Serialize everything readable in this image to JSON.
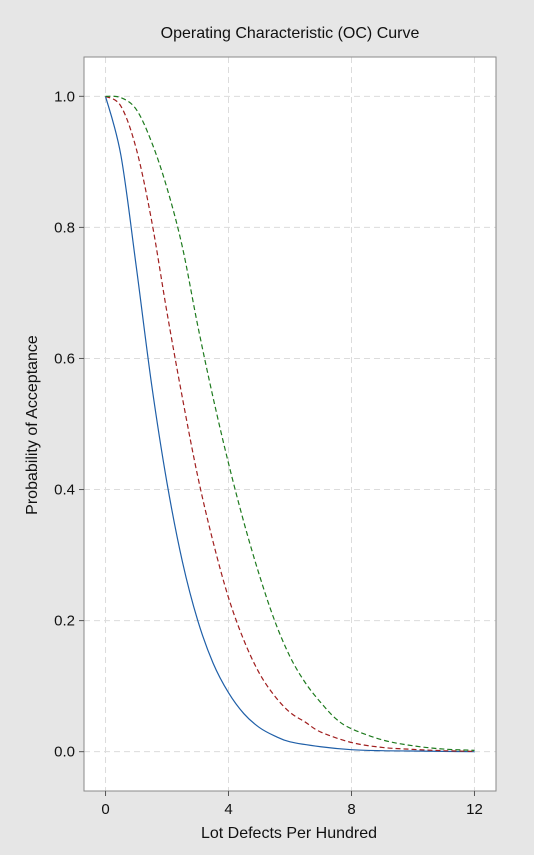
{
  "chart_data": {
    "type": "line",
    "title": "Operating Characteristic (OC) Curve",
    "xlabel": "Lot Defects Per Hundred",
    "ylabel": "Probability of Acceptance",
    "xlim": [
      -0.7,
      12.7
    ],
    "ylim": [
      -0.06,
      1.06
    ],
    "x_ticks": [
      0,
      4,
      8,
      12
    ],
    "x_tick_labels": [
      "0",
      "4",
      "8",
      "12"
    ],
    "y_ticks": [
      0.0,
      0.2,
      0.4,
      0.6,
      0.8,
      1.0
    ],
    "y_tick_labels": [
      "0.0",
      "0.2",
      "0.4",
      "0.6",
      "0.8",
      "1.0"
    ],
    "grid": true,
    "background": "#e6e6e6",
    "plot_background": "#ffffff",
    "series": [
      {
        "color": "#1f5fa8",
        "style": "solid",
        "x": [
          0,
          0.5,
          1,
          1.5,
          2,
          2.5,
          3,
          3.5,
          4,
          4.5,
          5,
          5.5,
          6,
          7,
          8,
          9,
          10,
          11,
          12
        ],
        "y": [
          1.0,
          0.91,
          0.74,
          0.56,
          0.41,
          0.29,
          0.2,
          0.135,
          0.09,
          0.058,
          0.037,
          0.024,
          0.015,
          0.0075,
          0.003,
          0.0015,
          0.001,
          0.0005,
          0.0
        ]
      },
      {
        "color": "#a01f1f",
        "style": "dashed",
        "x": [
          0,
          0.5,
          1,
          1.5,
          2,
          2.5,
          3,
          3.5,
          4,
          4.5,
          5,
          5.5,
          6,
          6.5,
          7,
          8,
          9,
          10,
          11,
          12
        ],
        "y": [
          1.0,
          0.985,
          0.92,
          0.81,
          0.67,
          0.54,
          0.42,
          0.32,
          0.235,
          0.17,
          0.12,
          0.085,
          0.06,
          0.045,
          0.03,
          0.014,
          0.0065,
          0.0035,
          0.0015,
          0.0005
        ]
      },
      {
        "color": "#1e7a1e",
        "style": "dashed",
        "x": [
          0,
          0.5,
          1,
          1.5,
          2,
          2.5,
          3,
          3.5,
          4,
          4.5,
          5,
          5.5,
          6,
          6.5,
          7,
          7.5,
          8,
          9,
          10,
          11,
          12
        ],
        "y": [
          1.0,
          0.998,
          0.98,
          0.93,
          0.86,
          0.77,
          0.65,
          0.54,
          0.44,
          0.35,
          0.27,
          0.2,
          0.145,
          0.105,
          0.075,
          0.05,
          0.035,
          0.018,
          0.009,
          0.004,
          0.002
        ]
      }
    ]
  }
}
